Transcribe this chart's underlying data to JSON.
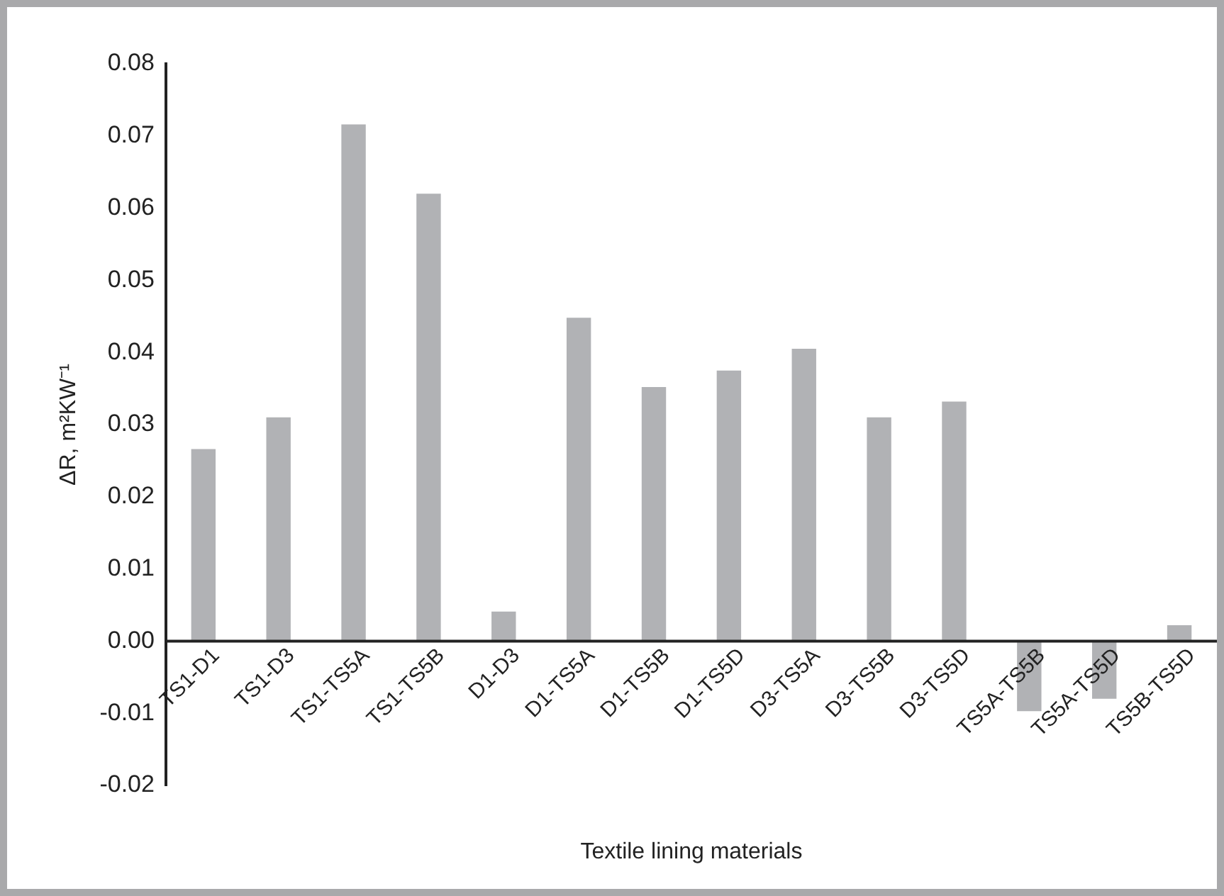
{
  "chart_data": {
    "type": "bar",
    "xlabel": "Textile lining materials",
    "ylabel": "ΔR, m²KW⁻¹",
    "categories": [
      "TS1-D1",
      "TS1-D3",
      "TS1-TS5A",
      "TS1-TS5B",
      "D1-D3",
      "D1-TS5A",
      "D1-TS5B",
      "D1-TS5D",
      "D3-TS5A",
      "D3-TS5B",
      "D3-TS5D",
      "TS5A-TS5B",
      "TS5A-TS5D",
      "TS5B-TS5D"
    ],
    "values": [
      0.0266,
      0.031,
      0.0716,
      0.062,
      0.0041,
      0.0448,
      0.0352,
      0.0375,
      0.0405,
      0.031,
      0.0332,
      -0.0097,
      -0.008,
      0.0022
    ],
    "color": "#b1b2b5",
    "ylim": [
      -0.02,
      0.08
    ],
    "yticks": [
      -0.02,
      -0.01,
      {
        "value": 0,
        "label": "0.00"
      },
      0.01,
      0.02,
      0.03,
      0.04,
      0.05,
      0.06,
      0.07,
      0.08
    ],
    "grid": false,
    "legend": false
  }
}
